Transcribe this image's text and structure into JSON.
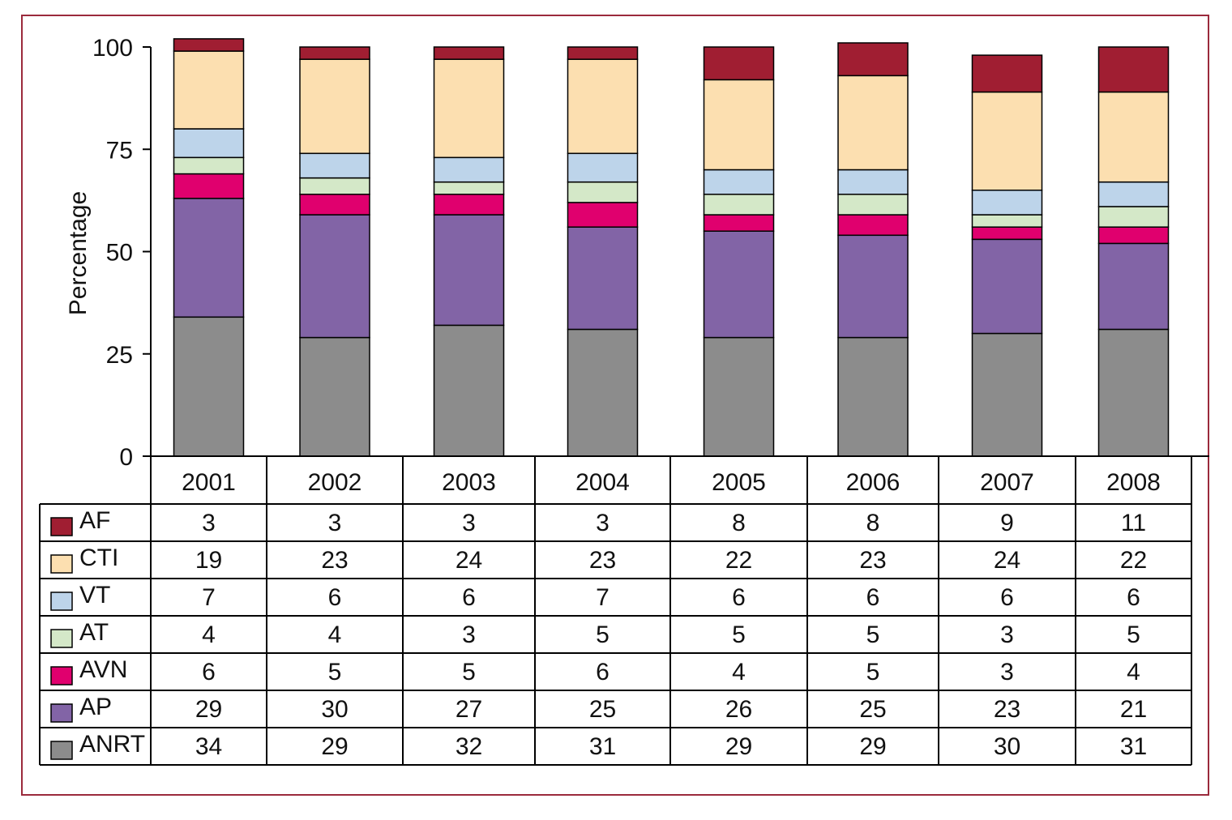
{
  "chart_data": {
    "type": "bar",
    "stacked": true,
    "categories": [
      "2001",
      "2002",
      "2003",
      "2004",
      "2005",
      "2006",
      "2007",
      "2008"
    ],
    "ylabel": "Percentage",
    "xlabel": "",
    "ylim": [
      0,
      100
    ],
    "yticks": [
      "0",
      "25",
      "50",
      "75",
      "100"
    ],
    "series": [
      {
        "name": "ANRT",
        "color": "#8c8c8c",
        "values": [
          34,
          29,
          32,
          31,
          29,
          29,
          30,
          31
        ]
      },
      {
        "name": "AP",
        "color": "#8264a6",
        "values": [
          29,
          30,
          27,
          25,
          26,
          25,
          23,
          21
        ]
      },
      {
        "name": "AVN",
        "color": "#e0006e",
        "values": [
          6,
          5,
          5,
          6,
          4,
          5,
          3,
          4
        ]
      },
      {
        "name": "AT",
        "color": "#d4e8c8",
        "values": [
          4,
          4,
          3,
          5,
          5,
          5,
          3,
          5
        ]
      },
      {
        "name": "VT",
        "color": "#bdd4ea",
        "values": [
          7,
          6,
          6,
          7,
          6,
          6,
          6,
          6
        ]
      },
      {
        "name": "CTI",
        "color": "#fcdfb0",
        "values": [
          19,
          23,
          24,
          23,
          22,
          23,
          24,
          22
        ]
      },
      {
        "name": "AF",
        "color": "#a01e32",
        "values": [
          3,
          3,
          3,
          3,
          8,
          8,
          9,
          11
        ]
      }
    ],
    "table_row_order": [
      "AF",
      "CTI",
      "VT",
      "AT",
      "AVN",
      "AP",
      "ANRT"
    ],
    "frame_color": "#9b2a3c"
  }
}
